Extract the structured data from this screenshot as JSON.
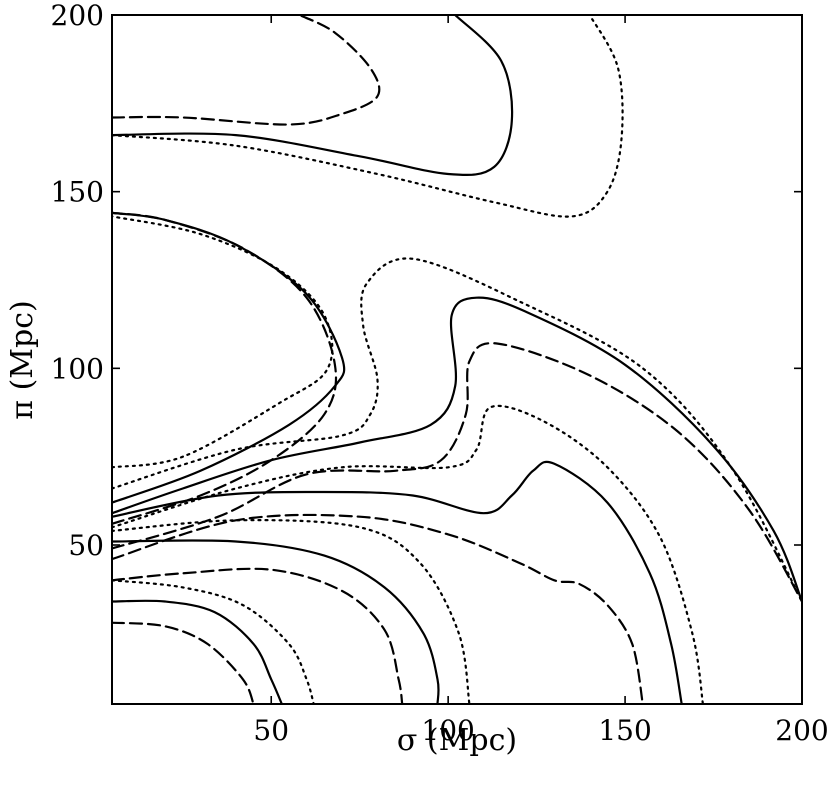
{
  "chart_data": {
    "type": "contour",
    "xlabel": "σ (Mpc)",
    "ylabel": "π (Mpc)",
    "xlim": [
      5,
      200
    ],
    "ylim": [
      5,
      200
    ],
    "xticks": [
      50,
      100,
      150,
      200
    ],
    "yticks": [
      50,
      100,
      150,
      200
    ],
    "x_tick_labels": [
      "50",
      "100",
      "150",
      "200"
    ],
    "y_tick_labels": [
      "50",
      "100",
      "150",
      "200"
    ],
    "grid": false,
    "series": [
      {
        "style": "solid",
        "points": [
          [
            5,
            34
          ],
          [
            20,
            34
          ],
          [
            34,
            31
          ],
          [
            45,
            22
          ],
          [
            50,
            12
          ],
          [
            53,
            5
          ]
        ]
      },
      {
        "style": "solid",
        "points": [
          [
            5,
            51
          ],
          [
            40,
            51
          ],
          [
            65,
            47
          ],
          [
            82,
            38
          ],
          [
            93,
            25
          ],
          [
            97,
            12
          ],
          [
            97,
            5
          ]
        ]
      },
      {
        "style": "solid",
        "points": [
          [
            5,
            58
          ],
          [
            35,
            64
          ],
          [
            65,
            65
          ],
          [
            90,
            64
          ],
          [
            110,
            59
          ],
          [
            118,
            64
          ],
          [
            124,
            71
          ],
          [
            130,
            73
          ],
          [
            145,
            62
          ],
          [
            157,
            42
          ],
          [
            163,
            22
          ],
          [
            166,
            5
          ]
        ]
      },
      {
        "style": "solid",
        "points": [
          [
            5,
            59
          ],
          [
            25,
            66
          ],
          [
            50,
            74
          ],
          [
            75,
            79
          ],
          [
            95,
            84
          ],
          [
            102,
            95
          ],
          [
            101,
            115
          ],
          [
            108,
            120
          ],
          [
            122,
            116
          ],
          [
            150,
            101
          ],
          [
            175,
            78
          ],
          [
            192,
            54
          ],
          [
            200,
            34
          ]
        ]
      },
      {
        "style": "solid",
        "points": [
          [
            5,
            62
          ],
          [
            30,
            71
          ],
          [
            55,
            84
          ],
          [
            68,
            95
          ],
          [
            70,
            103
          ],
          [
            60,
            121
          ],
          [
            40,
            135
          ],
          [
            20,
            142
          ],
          [
            5,
            144
          ]
        ]
      },
      {
        "style": "solid",
        "points": [
          [
            5,
            166
          ],
          [
            40,
            166
          ],
          [
            75,
            160
          ],
          [
            100,
            155
          ],
          [
            113,
            157
          ],
          [
            118,
            170
          ],
          [
            115,
            187
          ],
          [
            102,
            200
          ]
        ]
      },
      {
        "style": "dashed",
        "points": [
          [
            5,
            28
          ],
          [
            20,
            27
          ],
          [
            32,
            22
          ],
          [
            42,
            12
          ],
          [
            45,
            5
          ]
        ]
      },
      {
        "style": "dashed",
        "points": [
          [
            5,
            40
          ],
          [
            25,
            42
          ],
          [
            50,
            43
          ],
          [
            70,
            37
          ],
          [
            82,
            26
          ],
          [
            86,
            12
          ],
          [
            87,
            5
          ]
        ]
      },
      {
        "style": "dashed",
        "points": [
          [
            5,
            46
          ],
          [
            40,
            57
          ],
          [
            75,
            58
          ],
          [
            100,
            53
          ],
          [
            120,
            45
          ],
          [
            130,
            40
          ],
          [
            137,
            39
          ],
          [
            145,
            33
          ],
          [
            152,
            22
          ],
          [
            155,
            5
          ]
        ]
      },
      {
        "style": "dashed",
        "points": [
          [
            5,
            49
          ],
          [
            35,
            58
          ],
          [
            60,
            70
          ],
          [
            85,
            71
          ],
          [
            98,
            74
          ],
          [
            105,
            87
          ],
          [
            106,
            102
          ],
          [
            114,
            107
          ],
          [
            140,
            98
          ],
          [
            165,
            82
          ],
          [
            185,
            60
          ],
          [
            200,
            34
          ]
        ]
      },
      {
        "style": "dashed",
        "points": [
          [
            5,
            56
          ],
          [
            30,
            64
          ],
          [
            50,
            74
          ],
          [
            65,
            87
          ],
          [
            68,
            101
          ],
          [
            60,
            120
          ],
          [
            42,
            134
          ],
          [
            20,
            142
          ],
          [
            5,
            144
          ]
        ]
      },
      {
        "style": "dashed",
        "points": [
          [
            5,
            171
          ],
          [
            25,
            171
          ],
          [
            55,
            169
          ],
          [
            70,
            172
          ],
          [
            80,
            177
          ],
          [
            78,
            185
          ],
          [
            68,
            195
          ],
          [
            58,
            200
          ]
        ]
      },
      {
        "style": "dotted",
        "points": [
          [
            5,
            40
          ],
          [
            25,
            38
          ],
          [
            42,
            33
          ],
          [
            55,
            22
          ],
          [
            60,
            12
          ],
          [
            62,
            5
          ]
        ]
      },
      {
        "style": "dotted",
        "points": [
          [
            5,
            54
          ],
          [
            40,
            57
          ],
          [
            75,
            55
          ],
          [
            92,
            45
          ],
          [
            103,
            25
          ],
          [
            106,
            5
          ]
        ]
      },
      {
        "style": "dotted",
        "points": [
          [
            5,
            55
          ],
          [
            40,
            66
          ],
          [
            70,
            72
          ],
          [
            100,
            72
          ],
          [
            108,
            77
          ],
          [
            112,
            89
          ],
          [
            127,
            85
          ],
          [
            145,
            72
          ],
          [
            160,
            52
          ],
          [
            169,
            25
          ],
          [
            172,
            5
          ]
        ]
      },
      {
        "style": "dotted",
        "points": [
          [
            5,
            66
          ],
          [
            40,
            77
          ],
          [
            70,
            81
          ],
          [
            78,
            87
          ],
          [
            80,
            97
          ],
          [
            76,
            112
          ],
          [
            77,
            124
          ],
          [
            90,
            131
          ],
          [
            120,
            119
          ],
          [
            155,
            100
          ],
          [
            180,
            72
          ],
          [
            200,
            34
          ]
        ]
      },
      {
        "style": "dotted",
        "points": [
          [
            5,
            72
          ],
          [
            25,
            75
          ],
          [
            52,
            90
          ],
          [
            66,
            100
          ],
          [
            65,
            115
          ],
          [
            52,
            128
          ],
          [
            30,
            138
          ],
          [
            5,
            143
          ]
        ]
      },
      {
        "style": "dotted",
        "points": [
          [
            5,
            166
          ],
          [
            40,
            163
          ],
          [
            80,
            155
          ],
          [
            113,
            147
          ],
          [
            135,
            143
          ],
          [
            145,
            150
          ],
          [
            149,
            165
          ],
          [
            148,
            185
          ],
          [
            140,
            200
          ]
        ]
      }
    ]
  }
}
